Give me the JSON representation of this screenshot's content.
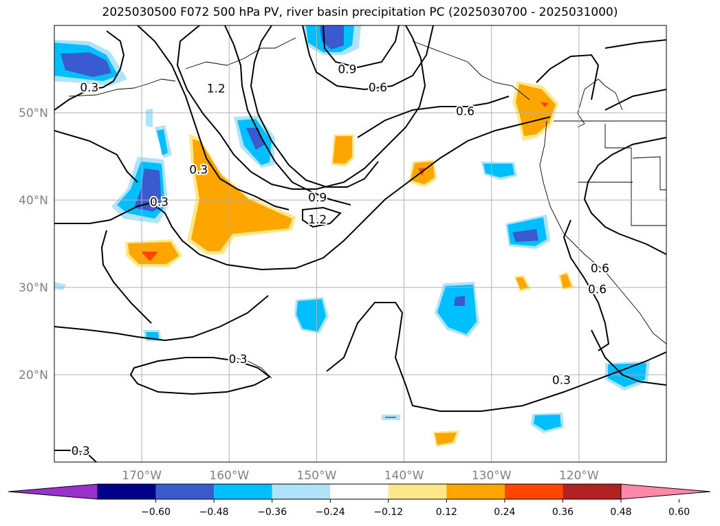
{
  "title": "2025030500 F072 500 hPa PV, river basin precipitation PC (2025030700 - 2025031000)",
  "map": {
    "lon_range": [
      -180,
      -110
    ],
    "lat_range": [
      10,
      60
    ],
    "lon_ticks": [
      {
        "lon": -170,
        "label": "170°W"
      },
      {
        "lon": -160,
        "label": "160°W"
      },
      {
        "lon": -150,
        "label": "150°W"
      },
      {
        "lon": -140,
        "label": "140°W"
      },
      {
        "lon": -130,
        "label": "130°W"
      },
      {
        "lon": -120,
        "label": "120°W"
      }
    ],
    "lat_ticks": [
      {
        "lat": 20,
        "label": "20°N"
      },
      {
        "lat": 30,
        "label": "30°N"
      },
      {
        "lat": 40,
        "label": "40°N"
      },
      {
        "lat": 50,
        "label": "50°N"
      }
    ],
    "grid": true
  },
  "contour_labels": [
    {
      "text": "0.9",
      "lon": -146.5,
      "lat": 55.0
    },
    {
      "text": "0.6",
      "lon": -143.0,
      "lat": 52.9
    },
    {
      "text": "0.6",
      "lon": -133.0,
      "lat": 50.2
    },
    {
      "text": "1.2",
      "lon": -161.5,
      "lat": 52.8
    },
    {
      "text": "0.3",
      "lon": -176.0,
      "lat": 52.9
    },
    {
      "text": "0.3",
      "lon": -163.5,
      "lat": 43.5
    },
    {
      "text": "0.3",
      "lon": -168.0,
      "lat": 39.8
    },
    {
      "text": "0.9",
      "lon": -149.9,
      "lat": 40.3
    },
    {
      "text": "1.2",
      "lon": -149.9,
      "lat": 37.8
    },
    {
      "text": "0.6",
      "lon": -117.6,
      "lat": 32.2
    },
    {
      "text": "0.6",
      "lon": -117.9,
      "lat": 29.8
    },
    {
      "text": "0.3",
      "lon": -159.0,
      "lat": 21.8
    },
    {
      "text": "0.3",
      "lon": -122.0,
      "lat": 19.4
    },
    {
      "text": "0.3",
      "lon": -177.0,
      "lat": 11.3
    }
  ],
  "colorbar": {
    "ticks": [
      "−0.60",
      "−0.48",
      "−0.36",
      "−0.24",
      "−0.12",
      "0.12",
      "0.24",
      "0.36",
      "0.48",
      "0.60"
    ],
    "colors": [
      "#9932cc",
      "#00008b",
      "#3a5bd0",
      "#00bfff",
      "#aee3fa",
      "#ffffff",
      "#ffe88a",
      "#ffa500",
      "#ff4500",
      "#b22222",
      "#ff88aa"
    ]
  }
}
